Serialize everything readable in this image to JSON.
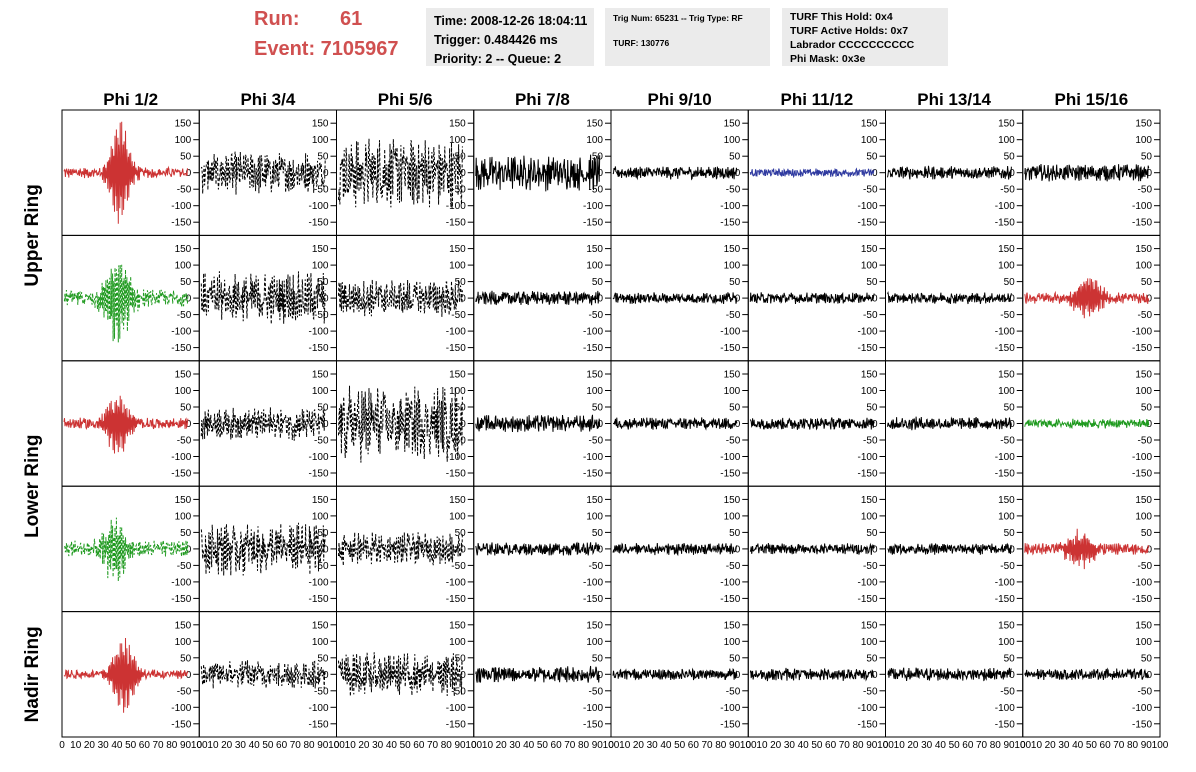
{
  "header": {
    "run_label": "Run:",
    "run_value": "61",
    "event_label": "Event: 7105967"
  },
  "info": {
    "time": "Time: 2008-12-26 18:04:11",
    "trigger": "Trigger: 0.484426 ms",
    "priority": "Priority: 2 -- Queue: 2",
    "trig_num": "Trig Num: 65231 -- Trig Type: RF",
    "turf": "TURF: 130776",
    "turf_this_hold": "TURF This Hold: 0x4",
    "turf_active_holds": "TURF Active Holds: 0x7",
    "labrador": "Labrador CCCCCCCCCC",
    "phi_mask": "Phi Mask: 0x3e"
  },
  "chart_data": {
    "type": "line",
    "description_note": "",
    "columns": [
      "Phi 1/2",
      "Phi 3/4",
      "Phi 5/6",
      "Phi 7/8",
      "Phi 9/10",
      "Phi 11/12",
      "Phi 13/14",
      "Phi 15/16"
    ],
    "row_labels": [
      "Upper Ring",
      "Lower Ring",
      "Nadir Ring"
    ],
    "y_ticks": [
      150,
      100,
      50,
      0,
      -50,
      -100,
      -150
    ],
    "y_tick_labels": [
      "150",
      "100",
      "50",
      "0",
      "-50",
      "-100",
      "-150"
    ],
    "ylim": [
      -190,
      190
    ],
    "xlim": [
      0,
      100
    ],
    "x_tick_labels": [
      "0",
      "10",
      "20",
      "30",
      "40",
      "50",
      "60",
      "70",
      "80",
      "90",
      "100"
    ],
    "colors": {
      "red": "#cc3333",
      "green": "#1f9a1f",
      "blue": "#2f3aa0",
      "black": "#000000"
    },
    "panels": [
      [
        {
          "color": "red",
          "dashed": false,
          "noise": 12,
          "burst": {
            "center": 42,
            "width": 6,
            "amp": 165
          }
        },
        {
          "color": "black",
          "dashed": true,
          "noise": 45,
          "burst": null
        },
        {
          "color": "black",
          "dashed": true,
          "noise": 75,
          "burst": null
        },
        {
          "color": "black",
          "dashed": false,
          "noise": 38,
          "burst": null
        },
        {
          "color": "black",
          "dashed": false,
          "noise": 14,
          "burst": null
        },
        {
          "color": "blue",
          "dashed": false,
          "noise": 9,
          "burst": null
        },
        {
          "color": "black",
          "dashed": false,
          "noise": 14,
          "burst": null
        },
        {
          "color": "black",
          "dashed": false,
          "noise": 18,
          "burst": null
        }
      ],
      [
        {
          "color": "green",
          "dashed": true,
          "noise": 18,
          "burst": {
            "center": 40,
            "width": 8,
            "amp": 140
          }
        },
        {
          "color": "black",
          "dashed": true,
          "noise": 55,
          "burst": null
        },
        {
          "color": "black",
          "dashed": true,
          "noise": 40,
          "burst": null
        },
        {
          "color": "black",
          "dashed": false,
          "noise": 15,
          "burst": null
        },
        {
          "color": "black",
          "dashed": false,
          "noise": 12,
          "burst": null
        },
        {
          "color": "black",
          "dashed": false,
          "noise": 12,
          "burst": null
        },
        {
          "color": "black",
          "dashed": false,
          "noise": 12,
          "burst": null
        },
        {
          "color": "red",
          "dashed": false,
          "noise": 12,
          "burst": {
            "center": 48,
            "width": 8,
            "amp": 75
          }
        }
      ],
      [
        {
          "color": "red",
          "dashed": false,
          "noise": 12,
          "burst": {
            "center": 40,
            "width": 7,
            "amp": 95
          }
        },
        {
          "color": "black",
          "dashed": true,
          "noise": 35,
          "burst": null
        },
        {
          "color": "black",
          "dashed": true,
          "noise": 80,
          "burst": null
        },
        {
          "color": "black",
          "dashed": false,
          "noise": 18,
          "burst": null
        },
        {
          "color": "black",
          "dashed": false,
          "noise": 13,
          "burst": null
        },
        {
          "color": "black",
          "dashed": false,
          "noise": 13,
          "burst": null
        },
        {
          "color": "black",
          "dashed": false,
          "noise": 14,
          "burst": null
        },
        {
          "color": "green",
          "dashed": false,
          "noise": 10,
          "burst": null
        }
      ],
      [
        {
          "color": "green",
          "dashed": true,
          "noise": 18,
          "burst": {
            "center": 38,
            "width": 7,
            "amp": 100
          }
        },
        {
          "color": "black",
          "dashed": true,
          "noise": 55,
          "burst": null
        },
        {
          "color": "black",
          "dashed": true,
          "noise": 35,
          "burst": null
        },
        {
          "color": "black",
          "dashed": false,
          "noise": 14,
          "burst": null
        },
        {
          "color": "black",
          "dashed": false,
          "noise": 13,
          "burst": null
        },
        {
          "color": "black",
          "dashed": false,
          "noise": 12,
          "burst": null
        },
        {
          "color": "black",
          "dashed": false,
          "noise": 12,
          "burst": null
        },
        {
          "color": "red",
          "dashed": false,
          "noise": 12,
          "burst": {
            "center": 42,
            "width": 8,
            "amp": 60
          }
        }
      ],
      [
        {
          "color": "red",
          "dashed": false,
          "noise": 10,
          "burst": {
            "center": 45,
            "width": 7,
            "amp": 120
          }
        },
        {
          "color": "black",
          "dashed": true,
          "noise": 30,
          "burst": null
        },
        {
          "color": "black",
          "dashed": true,
          "noise": 45,
          "burst": null
        },
        {
          "color": "black",
          "dashed": false,
          "noise": 18,
          "burst": null
        },
        {
          "color": "black",
          "dashed": false,
          "noise": 12,
          "burst": null
        },
        {
          "color": "black",
          "dashed": false,
          "noise": 14,
          "burst": null
        },
        {
          "color": "black",
          "dashed": false,
          "noise": 14,
          "burst": null
        },
        {
          "color": "black",
          "dashed": false,
          "noise": 12,
          "burst": null
        }
      ]
    ]
  }
}
